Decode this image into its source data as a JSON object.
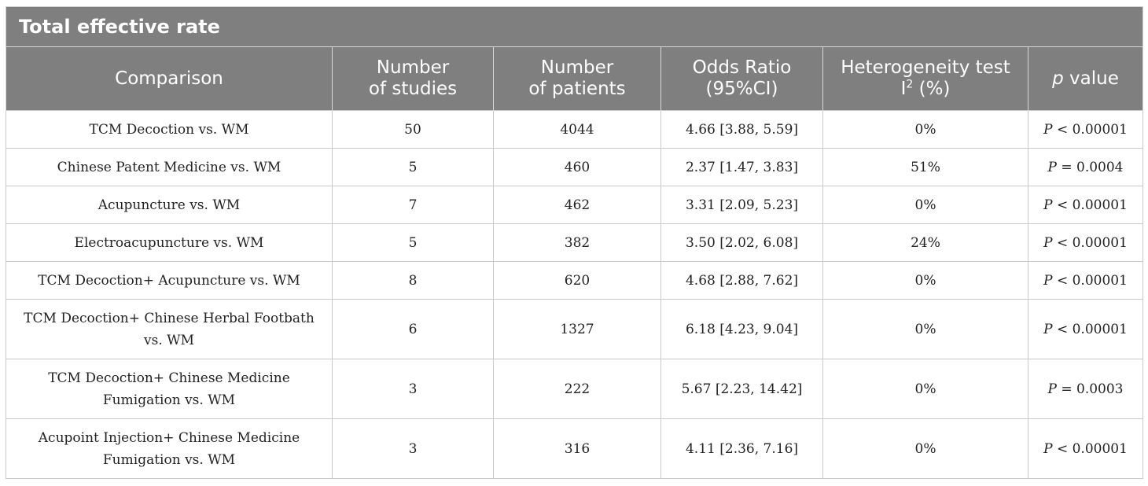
{
  "table": {
    "title": "Total effective rate",
    "headers": {
      "comparison": "Comparison",
      "studies_l1": "Number",
      "studies_l2": "of studies",
      "patients_l1": "Number",
      "patients_l2": "of patients",
      "or_l1": "Odds Ratio",
      "or_l2": "(95%CI)",
      "het_l1": "Heterogeneity test",
      "het_l2_pre": "I",
      "het_l2_sup": "2",
      "het_l2_post": " (%)",
      "p_italic": "p",
      "p_rest": " value"
    },
    "rows": [
      {
        "comparison": "TCM Decoction vs. WM",
        "studies": "50",
        "patients": "4044",
        "or": "4.66 [3.88, 5.59]",
        "het": "0%",
        "p_sym": "P",
        "p_val": " < 0.00001"
      },
      {
        "comparison": "Chinese Patent Medicine vs. WM",
        "studies": "5",
        "patients": "460",
        "or": "2.37 [1.47, 3.83]",
        "het": "51%",
        "p_sym": "P",
        "p_val": " = 0.0004"
      },
      {
        "comparison": "Acupuncture vs. WM",
        "studies": "7",
        "patients": "462",
        "or": "3.31 [2.09, 5.23]",
        "het": "0%",
        "p_sym": "P",
        "p_val": " < 0.00001"
      },
      {
        "comparison": "Electroacupuncture vs. WM",
        "studies": "5",
        "patients": "382",
        "or": "3.50 [2.02, 6.08]",
        "het": "24%",
        "p_sym": "P",
        "p_val": " < 0.00001"
      },
      {
        "comparison": "TCM Decoction+ Acupuncture vs. WM",
        "studies": "8",
        "patients": "620",
        "or": "4.68 [2.88, 7.62]",
        "het": "0%",
        "p_sym": "P",
        "p_val": " < 0.00001"
      },
      {
        "comparison_l1": "TCM Decoction+ Chinese Herbal Footbath",
        "comparison_l2": "vs. WM",
        "studies": "6",
        "patients": "1327",
        "or": "6.18 [4.23, 9.04]",
        "het": "0%",
        "p_sym": "P",
        "p_val": " < 0.00001"
      },
      {
        "comparison_l1": "TCM Decoction+ Chinese Medicine",
        "comparison_l2": "Fumigation vs. WM",
        "studies": "3",
        "patients": "222",
        "or": "5.67 [2.23, 14.42]",
        "het": "0%",
        "p_sym": "P",
        "p_val": " = 0.0003"
      },
      {
        "comparison_l1": "Acupoint Injection+ Chinese Medicine",
        "comparison_l2": "Fumigation vs. WM",
        "studies": "3",
        "patients": "316",
        "or": "4.11 [2.36, 7.16]",
        "het": "0%",
        "p_sym": "P",
        "p_val": " < 0.00001"
      }
    ]
  }
}
